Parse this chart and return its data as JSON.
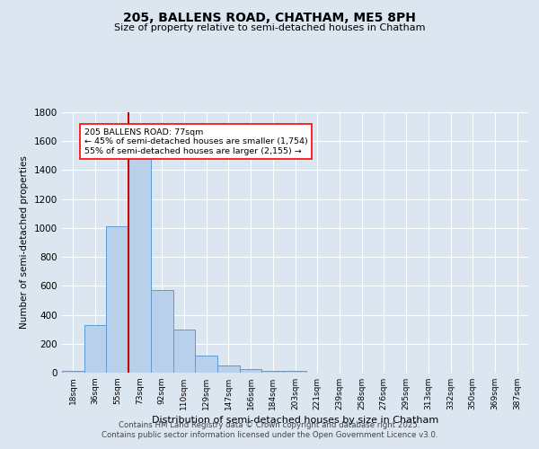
{
  "title1": "205, BALLENS ROAD, CHATHAM, ME5 8PH",
  "title2": "Size of property relative to semi-detached houses in Chatham",
  "xlabel": "Distribution of semi-detached houses by size in Chatham",
  "ylabel": "Number of semi-detached properties",
  "categories": [
    "18sqm",
    "36sqm",
    "55sqm",
    "73sqm",
    "92sqm",
    "110sqm",
    "129sqm",
    "147sqm",
    "166sqm",
    "184sqm",
    "203sqm",
    "221sqm",
    "239sqm",
    "258sqm",
    "276sqm",
    "295sqm",
    "313sqm",
    "332sqm",
    "350sqm",
    "369sqm",
    "387sqm"
  ],
  "values": [
    15,
    330,
    1010,
    1510,
    570,
    300,
    120,
    50,
    25,
    15,
    10,
    0,
    0,
    0,
    0,
    0,
    0,
    0,
    0,
    0,
    0
  ],
  "bar_color": "#b8d0ea",
  "bar_edge_color": "#5b9bd5",
  "red_line_index": 3,
  "annotation_title": "205 BALLENS ROAD: 77sqm",
  "annotation_line1": "← 45% of semi-detached houses are smaller (1,754)",
  "annotation_line2": "55% of semi-detached houses are larger (2,155) →",
  "vline_color": "#cc0000",
  "ylim": [
    0,
    1800
  ],
  "yticks": [
    0,
    200,
    400,
    600,
    800,
    1000,
    1200,
    1400,
    1600,
    1800
  ],
  "footer1": "Contains HM Land Registry data © Crown copyright and database right 2025.",
  "footer2": "Contains public sector information licensed under the Open Government Licence v3.0.",
  "bg_color": "#dce6f1",
  "plot_bg_color": "#dce6f1"
}
